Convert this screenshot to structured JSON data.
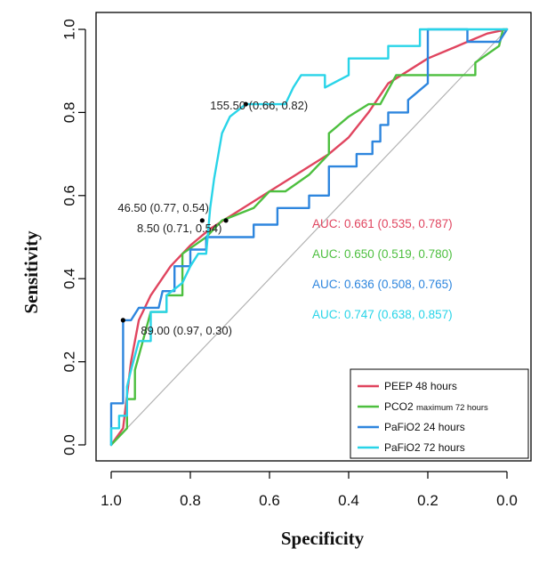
{
  "chart_data": {
    "type": "line",
    "xlabel": "Specificity",
    "ylabel": "Sensitivity",
    "xlim": [
      1.0,
      0.0
    ],
    "ylim": [
      0.0,
      1.0
    ],
    "x_reversed": true,
    "x_ticks": [
      "1.0",
      "0.8",
      "0.6",
      "0.4",
      "0.2",
      "0.0"
    ],
    "x_tick_values": [
      1.0,
      0.8,
      0.6,
      0.4,
      0.2,
      0.0
    ],
    "y_ticks": [
      "0.0",
      "0.2",
      "0.4",
      "0.6",
      "0.8",
      "1.0"
    ],
    "y_tick_values": [
      0.0,
      0.2,
      0.4,
      0.6,
      0.8,
      1.0
    ],
    "grid": false,
    "reference_line": {
      "from": [
        1.0,
        0.0
      ],
      "to": [
        0.0,
        1.0
      ],
      "color": "#b3b3b3"
    },
    "legend_position": "bottom-right",
    "series": [
      {
        "name": "PEEP 48 hours",
        "color": "#e0455f",
        "points": [
          [
            1.0,
            0.0
          ],
          [
            0.97,
            0.04
          ],
          [
            0.95,
            0.2
          ],
          [
            0.93,
            0.3
          ],
          [
            0.9,
            0.36
          ],
          [
            0.85,
            0.43
          ],
          [
            0.8,
            0.48
          ],
          [
            0.75,
            0.52
          ],
          [
            0.7,
            0.55
          ],
          [
            0.65,
            0.58
          ],
          [
            0.6,
            0.61
          ],
          [
            0.55,
            0.64
          ],
          [
            0.5,
            0.67
          ],
          [
            0.45,
            0.7
          ],
          [
            0.4,
            0.74
          ],
          [
            0.35,
            0.8
          ],
          [
            0.3,
            0.87
          ],
          [
            0.25,
            0.9
          ],
          [
            0.2,
            0.93
          ],
          [
            0.15,
            0.95
          ],
          [
            0.1,
            0.97
          ],
          [
            0.05,
            0.99
          ],
          [
            0.0,
            1.0
          ]
        ]
      },
      {
        "name": "PCO2 maximum 72 hours",
        "name_parts": [
          "PCO2 ",
          "maximum 72 hours"
        ],
        "color": "#4dbf3f",
        "points": [
          [
            1.0,
            0.0
          ],
          [
            0.96,
            0.04
          ],
          [
            0.96,
            0.11
          ],
          [
            0.94,
            0.11
          ],
          [
            0.94,
            0.18
          ],
          [
            0.92,
            0.25
          ],
          [
            0.9,
            0.32
          ],
          [
            0.86,
            0.32
          ],
          [
            0.86,
            0.36
          ],
          [
            0.82,
            0.36
          ],
          [
            0.82,
            0.46
          ],
          [
            0.76,
            0.5
          ],
          [
            0.72,
            0.54
          ],
          [
            0.64,
            0.57
          ],
          [
            0.6,
            0.61
          ],
          [
            0.56,
            0.61
          ],
          [
            0.5,
            0.65
          ],
          [
            0.45,
            0.7
          ],
          [
            0.45,
            0.75
          ],
          [
            0.4,
            0.79
          ],
          [
            0.35,
            0.82
          ],
          [
            0.32,
            0.82
          ],
          [
            0.28,
            0.89
          ],
          [
            0.08,
            0.89
          ],
          [
            0.08,
            0.92
          ],
          [
            0.02,
            0.96
          ],
          [
            0.01,
            1.0
          ],
          [
            0.0,
            1.0
          ]
        ]
      },
      {
        "name": "PaFiO2 24 hours",
        "color": "#2e86de",
        "points": [
          [
            1.0,
            0.0
          ],
          [
            1.0,
            0.1
          ],
          [
            0.97,
            0.1
          ],
          [
            0.97,
            0.3
          ],
          [
            0.95,
            0.3
          ],
          [
            0.93,
            0.33
          ],
          [
            0.88,
            0.33
          ],
          [
            0.87,
            0.37
          ],
          [
            0.84,
            0.37
          ],
          [
            0.84,
            0.43
          ],
          [
            0.8,
            0.43
          ],
          [
            0.8,
            0.47
          ],
          [
            0.76,
            0.47
          ],
          [
            0.76,
            0.5
          ],
          [
            0.64,
            0.5
          ],
          [
            0.64,
            0.53
          ],
          [
            0.58,
            0.53
          ],
          [
            0.58,
            0.57
          ],
          [
            0.5,
            0.57
          ],
          [
            0.5,
            0.6
          ],
          [
            0.45,
            0.6
          ],
          [
            0.45,
            0.67
          ],
          [
            0.38,
            0.67
          ],
          [
            0.38,
            0.7
          ],
          [
            0.34,
            0.7
          ],
          [
            0.34,
            0.73
          ],
          [
            0.32,
            0.73
          ],
          [
            0.32,
            0.77
          ],
          [
            0.3,
            0.77
          ],
          [
            0.3,
            0.8
          ],
          [
            0.25,
            0.8
          ],
          [
            0.25,
            0.83
          ],
          [
            0.2,
            0.87
          ],
          [
            0.2,
            1.0
          ],
          [
            0.1,
            1.0
          ],
          [
            0.1,
            0.97
          ],
          [
            0.02,
            0.97
          ],
          [
            0.0,
            1.0
          ]
        ]
      },
      {
        "name": "PaFiO2 72 hours",
        "color": "#29d4e8",
        "points": [
          [
            1.0,
            0.0
          ],
          [
            1.0,
            0.04
          ],
          [
            0.98,
            0.04
          ],
          [
            0.98,
            0.07
          ],
          [
            0.96,
            0.07
          ],
          [
            0.96,
            0.14
          ],
          [
            0.95,
            0.18
          ],
          [
            0.93,
            0.25
          ],
          [
            0.9,
            0.25
          ],
          [
            0.9,
            0.32
          ],
          [
            0.86,
            0.32
          ],
          [
            0.86,
            0.36
          ],
          [
            0.82,
            0.39
          ],
          [
            0.8,
            0.43
          ],
          [
            0.78,
            0.46
          ],
          [
            0.76,
            0.46
          ],
          [
            0.75,
            0.57
          ],
          [
            0.74,
            0.64
          ],
          [
            0.72,
            0.75
          ],
          [
            0.7,
            0.79
          ],
          [
            0.66,
            0.82
          ],
          [
            0.56,
            0.82
          ],
          [
            0.54,
            0.86
          ],
          [
            0.52,
            0.89
          ],
          [
            0.46,
            0.89
          ],
          [
            0.46,
            0.86
          ],
          [
            0.4,
            0.89
          ],
          [
            0.4,
            0.93
          ],
          [
            0.3,
            0.93
          ],
          [
            0.3,
            0.96
          ],
          [
            0.22,
            0.96
          ],
          [
            0.22,
            1.0
          ],
          [
            0.0,
            1.0
          ]
        ]
      }
    ],
    "thresholds": [
      {
        "label": "155.50 (0.66, 0.82)",
        "x": 0.66,
        "y": 0.82,
        "series": "PaFiO2 72 hours"
      },
      {
        "label": "46.50 (0.77, 0.54)",
        "x": 0.77,
        "y": 0.54,
        "series": "PEEP 48 hours"
      },
      {
        "label": "8.50 (0.71, 0.54)",
        "x": 0.71,
        "y": 0.54,
        "series": "PCO2 maximum 72 hours"
      },
      {
        "label": "89.00 (0.97, 0.30)",
        "x": 0.97,
        "y": 0.3,
        "series": "PaFiO2 24 hours"
      }
    ],
    "auc_labels": [
      {
        "text": "AUC: 0.661 (0.535, 0.787)",
        "color": "#e0455f"
      },
      {
        "text": "AUC: 0.650 (0.519, 0.780)",
        "color": "#4dbf3f"
      },
      {
        "text": "AUC: 0.636 (0.508, 0.765)",
        "color": "#2e86de"
      },
      {
        "text": "AUC: 0.747 (0.638, 0.857)",
        "color": "#29d4e8"
      }
    ]
  }
}
